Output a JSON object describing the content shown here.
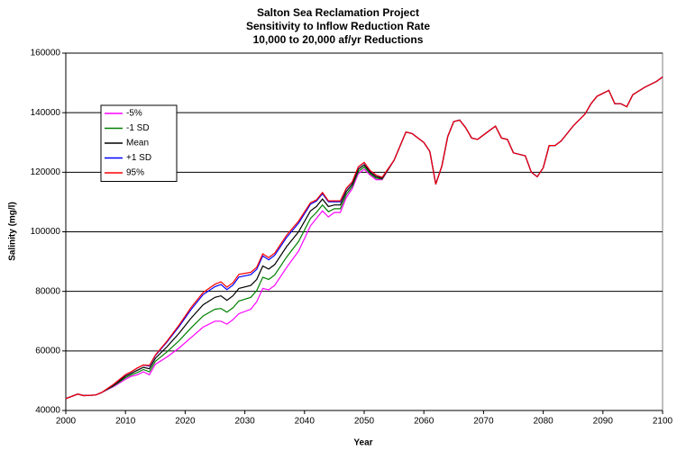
{
  "chart_data": {
    "type": "line",
    "title": [
      "Salton Sea Reclamation Project",
      "Sensitivity to Inflow Reduction Rate",
      "10,000 to 20,000 af/yr Reductions"
    ],
    "xlabel": "Year",
    "ylabel": "Salinity (mg/l)",
    "x": [
      2000,
      2002,
      2003,
      2005,
      2006,
      2008,
      2010,
      2011,
      2012,
      2013,
      2014,
      2015,
      2017,
      2019,
      2021,
      2023,
      2025,
      2026,
      2027,
      2028,
      2029,
      2031,
      2032,
      2033,
      2034,
      2035,
      2037,
      2039,
      2041,
      2042,
      2043,
      2044,
      2045,
      2046,
      2047,
      2048,
      2049,
      2050,
      2051,
      2052,
      2053,
      2055,
      2057,
      2058,
      2060,
      2061,
      2062,
      2063,
      2064,
      2065,
      2066,
      2067,
      2068,
      2069,
      2071,
      2072,
      2073,
      2074,
      2075,
      2077,
      2078,
      2079,
      2080,
      2081,
      2082,
      2083,
      2085,
      2087,
      2088,
      2089,
      2090,
      2091,
      2092,
      2093,
      2094,
      2095,
      2097,
      2099,
      2100
    ],
    "series": [
      {
        "name": "-5%",
        "color": "#ff00ff",
        "values": [
          44000,
          45500,
          45000,
          45200,
          46000,
          48000,
          50500,
          51500,
          52000,
          53000,
          52000,
          55500,
          58000,
          61000,
          64500,
          68000,
          70000,
          70000,
          69000,
          70500,
          72500,
          74000,
          76500,
          81000,
          80500,
          82000,
          88000,
          93500,
          102000,
          104500,
          107000,
          105000,
          106500,
          106500,
          111500,
          114500,
          119500,
          121000,
          119000,
          117500,
          117500,
          124000,
          133500,
          133000,
          130000,
          127000,
          116000,
          122000,
          132000,
          137000,
          137500,
          135000,
          131500,
          131000,
          134000,
          135500,
          131500,
          131000,
          126500,
          125500,
          120000,
          118500,
          121500,
          129000,
          129000,
          130500,
          135500,
          139500,
          143000,
          145500,
          146500,
          147500,
          143000,
          143000,
          142000,
          146000,
          148500,
          150500,
          152000
        ]
      },
      {
        "name": "-1 SD",
        "color": "#008000",
        "values": [
          44000,
          45500,
          45000,
          45200,
          46000,
          48250,
          51000,
          52000,
          52750,
          53750,
          53000,
          56500,
          59750,
          63500,
          67750,
          71750,
          74000,
          74250,
          73000,
          74500,
          76750,
          78000,
          80250,
          84750,
          84000,
          85500,
          91500,
          96750,
          104500,
          106500,
          109000,
          106750,
          107750,
          107750,
          112500,
          115250,
          120250,
          121750,
          119500,
          118000,
          117750,
          124000,
          133500,
          133000,
          130000,
          127000,
          116000,
          122000,
          132000,
          137000,
          137500,
          135000,
          131500,
          131000,
          134000,
          135500,
          131500,
          131000,
          126500,
          125500,
          120000,
          118500,
          121500,
          129000,
          129000,
          130500,
          135500,
          139500,
          143000,
          145500,
          146500,
          147500,
          143000,
          143000,
          142000,
          146000,
          148500,
          150500,
          152000
        ]
      },
      {
        "name": "Mean",
        "color": "#000000",
        "values": [
          44000,
          45500,
          45000,
          45200,
          46000,
          48500,
          51500,
          52500,
          53500,
          54500,
          54000,
          57500,
          61500,
          66000,
          71000,
          75500,
          78000,
          78500,
          77000,
          78500,
          81000,
          82000,
          84000,
          88500,
          87500,
          89000,
          95000,
          100000,
          107000,
          108500,
          111000,
          108500,
          109000,
          109000,
          113500,
          116000,
          121000,
          122500,
          120000,
          118500,
          118000,
          124000,
          133500,
          133000,
          130000,
          127000,
          116000,
          122000,
          132000,
          137000,
          137500,
          135000,
          131500,
          131000,
          134000,
          135500,
          131500,
          131000,
          126500,
          125500,
          120000,
          118500,
          121500,
          129000,
          129000,
          130500,
          135500,
          139500,
          143000,
          145500,
          146500,
          147500,
          143000,
          143000,
          142000,
          146000,
          148500,
          150500,
          152000
        ]
      },
      {
        "name": "+1 SD",
        "color": "#0000ff",
        "values": [
          44000,
          45500,
          45000,
          45200,
          46000,
          48750,
          52000,
          53000,
          54250,
          55250,
          54900,
          58400,
          63100,
          68250,
          73900,
          78900,
          81600,
          82300,
          80600,
          82100,
          84800,
          85600,
          87400,
          91900,
          90600,
          92100,
          98100,
          102900,
          109250,
          110300,
          112800,
          110100,
          110100,
          110100,
          114400,
          116700,
          121700,
          123200,
          120500,
          119000,
          118250,
          124000,
          133500,
          133000,
          130000,
          127000,
          116000,
          122000,
          132000,
          137000,
          137500,
          135000,
          131500,
          131000,
          134000,
          135500,
          131500,
          131000,
          126500,
          125500,
          120000,
          118500,
          121500,
          129000,
          129000,
          130500,
          135500,
          139500,
          143000,
          145500,
          146500,
          147500,
          143000,
          143000,
          142000,
          146000,
          148500,
          150500,
          152000
        ]
      },
      {
        "name": "95%",
        "color": "#ff0000",
        "values": [
          44000,
          45500,
          45000,
          45200,
          46000,
          48800,
          52050,
          53050,
          54300,
          55300,
          55100,
          58600,
          63400,
          68750,
          74600,
          79600,
          82400,
          83200,
          81400,
          82900,
          85700,
          86400,
          88100,
          92600,
          91350,
          92850,
          98850,
          103600,
          109750,
          110700,
          113200,
          110400,
          110400,
          110400,
          114600,
          116800,
          121800,
          123300,
          120550,
          119050,
          118300,
          124000,
          133500,
          133000,
          130000,
          127000,
          116000,
          122000,
          132000,
          137000,
          137500,
          135000,
          131500,
          131000,
          134000,
          135500,
          131500,
          131000,
          126500,
          125500,
          120000,
          118500,
          121500,
          129000,
          129000,
          130500,
          135500,
          139500,
          143000,
          145500,
          146500,
          147500,
          143000,
          143000,
          142000,
          146000,
          148500,
          150500,
          152000
        ]
      }
    ],
    "xlim": [
      2000,
      2100
    ],
    "xticks": [
      2000,
      2010,
      2020,
      2030,
      2040,
      2050,
      2060,
      2070,
      2080,
      2090,
      2100
    ],
    "ylim": [
      40000,
      160000
    ],
    "yticks": [
      40000,
      60000,
      80000,
      100000,
      120000,
      140000,
      160000
    ],
    "grid": true
  }
}
